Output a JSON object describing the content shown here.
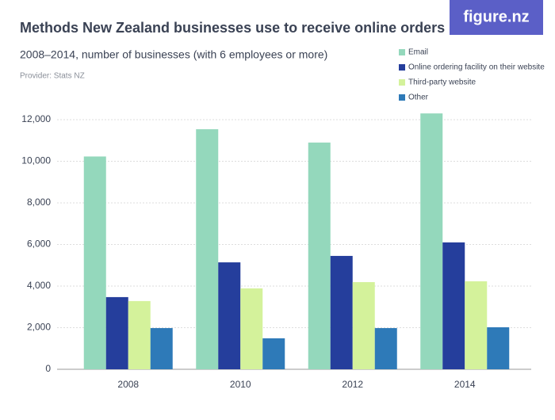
{
  "chart_data": {
    "type": "bar",
    "title": "Methods New Zealand businesses use to receive online orders",
    "subtitle": "2008–2014, number of businesses (with 6 employees or more)",
    "provider": "Provider: Stats NZ",
    "logo": "figure.nz",
    "categories": [
      "2008",
      "2010",
      "2012",
      "2014"
    ],
    "series": [
      {
        "name": "Email",
        "color": "#94d8bc",
        "values": [
          10230,
          11540,
          10900,
          12300
        ]
      },
      {
        "name": "Online ordering facility on their website",
        "color": "#253e9c",
        "values": [
          3470,
          5140,
          5450,
          6100
        ]
      },
      {
        "name": "Third-party website",
        "color": "#d4f29b",
        "values": [
          3280,
          3890,
          4190,
          4230
        ]
      },
      {
        "name": "Other",
        "color": "#2e7ab8",
        "values": [
          1980,
          1490,
          1980,
          2020
        ]
      }
    ],
    "ylim": [
      0,
      12500
    ],
    "yticks": [
      0,
      {
        "value": 2000,
        "label": "2,000"
      },
      {
        "value": 4000,
        "label": "4,000"
      },
      {
        "value": 6000,
        "label": "6,000"
      },
      {
        "value": 8000,
        "label": "8,000"
      },
      {
        "value": 10000,
        "label": "10,000"
      },
      {
        "value": 12000,
        "label": "12,000"
      }
    ],
    "grid": true
  }
}
